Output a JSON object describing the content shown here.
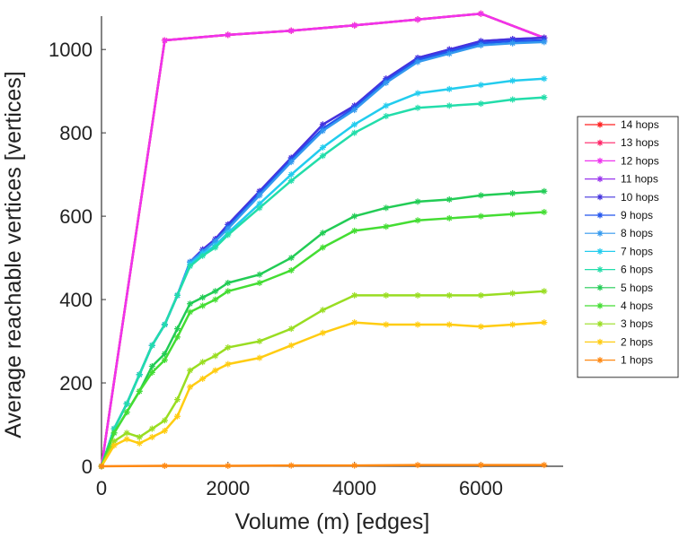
{
  "chart_data": {
    "type": "line",
    "xlabel": "Volume (m) [edges]",
    "ylabel": "Average reachable vertices [vertices]",
    "xlim": [
      0,
      7300
    ],
    "ylim": [
      0,
      1080
    ],
    "x_ticks": [
      0,
      2000,
      4000,
      6000
    ],
    "y_ticks": [
      0,
      200,
      400,
      600,
      800,
      1000
    ],
    "grid": false,
    "legend_position": "right",
    "series": [
      {
        "name": "14 hops",
        "color": "#ff2020",
        "x": [
          0,
          1000,
          2000,
          3000,
          4000,
          5000,
          6000,
          7000
        ],
        "values": [
          0,
          1022,
          1035,
          1045,
          1058,
          1072,
          1086,
          1028
        ]
      },
      {
        "name": "13 hops",
        "color": "#ff2266",
        "x": [
          0,
          1000,
          2000,
          3000,
          4000,
          5000,
          6000,
          7000
        ],
        "values": [
          0,
          1022,
          1035,
          1045,
          1058,
          1072,
          1086,
          1028
        ]
      },
      {
        "name": "12 hops",
        "color": "#ee33ee",
        "x": [
          0,
          1000,
          2000,
          3000,
          4000,
          5000,
          6000,
          7000
        ],
        "values": [
          0,
          1022,
          1035,
          1045,
          1058,
          1072,
          1086,
          1028
        ]
      },
      {
        "name": "11 hops",
        "color": "#9933ee",
        "x": [
          0,
          200,
          400,
          600,
          800,
          1000,
          1200,
          1400,
          1600,
          1800,
          2000,
          2500,
          3000,
          3500,
          4000,
          4500,
          5000,
          5500,
          6000,
          6500,
          7000
        ],
        "values": [
          0,
          90,
          150,
          220,
          290,
          340,
          410,
          490,
          520,
          545,
          580,
          660,
          740,
          820,
          865,
          930,
          980,
          1000,
          1020,
          1025,
          1028
        ]
      },
      {
        "name": "10 hops",
        "color": "#4433dd",
        "x": [
          0,
          200,
          400,
          600,
          800,
          1000,
          1200,
          1400,
          1600,
          1800,
          2000,
          2500,
          3000,
          3500,
          4000,
          4500,
          5000,
          5500,
          6000,
          6500,
          7000
        ],
        "values": [
          0,
          90,
          150,
          220,
          290,
          340,
          410,
          490,
          520,
          545,
          580,
          660,
          740,
          820,
          865,
          930,
          980,
          1000,
          1020,
          1025,
          1028
        ]
      },
      {
        "name": "9 hops",
        "color": "#2255ee",
        "x": [
          0,
          200,
          400,
          600,
          800,
          1000,
          1200,
          1400,
          1600,
          1800,
          2000,
          2500,
          3000,
          3500,
          4000,
          4500,
          5000,
          5500,
          6000,
          6500,
          7000
        ],
        "values": [
          0,
          90,
          150,
          220,
          290,
          340,
          410,
          490,
          515,
          540,
          575,
          655,
          735,
          810,
          860,
          925,
          975,
          995,
          1015,
          1020,
          1022
        ]
      },
      {
        "name": "8 hops",
        "color": "#3399ee",
        "x": [
          0,
          200,
          400,
          600,
          800,
          1000,
          1200,
          1400,
          1600,
          1800,
          2000,
          2500,
          3000,
          3500,
          4000,
          4500,
          5000,
          5500,
          6000,
          6500,
          7000
        ],
        "values": [
          0,
          90,
          150,
          220,
          290,
          340,
          410,
          490,
          515,
          540,
          570,
          650,
          730,
          805,
          855,
          920,
          970,
          990,
          1010,
          1015,
          1018
        ]
      },
      {
        "name": "7 hops",
        "color": "#22ccee",
        "x": [
          0,
          200,
          400,
          600,
          800,
          1000,
          1200,
          1400,
          1600,
          1800,
          2000,
          2500,
          3000,
          3500,
          4000,
          4500,
          5000,
          5500,
          6000,
          6500,
          7000
        ],
        "values": [
          0,
          90,
          150,
          220,
          290,
          340,
          410,
          485,
          510,
          530,
          560,
          630,
          700,
          765,
          820,
          865,
          895,
          905,
          915,
          925,
          930
        ]
      },
      {
        "name": "6 hops",
        "color": "#22ddaa",
        "x": [
          0,
          200,
          400,
          600,
          800,
          1000,
          1200,
          1400,
          1600,
          1800,
          2000,
          2500,
          3000,
          3500,
          4000,
          4500,
          5000,
          5500,
          6000,
          6500,
          7000
        ],
        "values": [
          0,
          90,
          150,
          220,
          290,
          340,
          410,
          480,
          505,
          525,
          555,
          620,
          685,
          745,
          800,
          840,
          860,
          865,
          870,
          880,
          885
        ]
      },
      {
        "name": "5 hops",
        "color": "#22cc55",
        "x": [
          0,
          200,
          400,
          600,
          800,
          1000,
          1200,
          1400,
          1600,
          1800,
          2000,
          2500,
          3000,
          3500,
          4000,
          4500,
          5000,
          5500,
          6000,
          6500,
          7000
        ],
        "values": [
          0,
          80,
          130,
          180,
          240,
          270,
          330,
          390,
          405,
          420,
          440,
          460,
          500,
          560,
          600,
          620,
          635,
          640,
          650,
          655,
          660
        ]
      },
      {
        "name": "4 hops",
        "color": "#44dd33",
        "x": [
          0,
          200,
          400,
          600,
          800,
          1000,
          1200,
          1400,
          1600,
          1800,
          2000,
          2500,
          3000,
          3500,
          4000,
          4500,
          5000,
          5500,
          6000,
          6500,
          7000
        ],
        "values": [
          0,
          80,
          130,
          180,
          225,
          255,
          310,
          370,
          385,
          400,
          420,
          440,
          470,
          525,
          565,
          575,
          590,
          595,
          600,
          605,
          610
        ]
      },
      {
        "name": "3 hops",
        "color": "#99dd22",
        "x": [
          0,
          200,
          400,
          600,
          800,
          1000,
          1200,
          1400,
          1600,
          1800,
          2000,
          2500,
          3000,
          3500,
          4000,
          4500,
          5000,
          5500,
          6000,
          6500,
          7000
        ],
        "values": [
          0,
          60,
          80,
          70,
          90,
          110,
          160,
          230,
          250,
          265,
          285,
          300,
          330,
          375,
          410,
          410,
          410,
          410,
          410,
          415,
          420
        ]
      },
      {
        "name": "2 hops",
        "color": "#ffcc11",
        "x": [
          0,
          200,
          400,
          600,
          800,
          1000,
          1200,
          1400,
          1600,
          1800,
          2000,
          2500,
          3000,
          3500,
          4000,
          4500,
          5000,
          5500,
          6000,
          6500,
          7000
        ],
        "values": [
          0,
          50,
          65,
          55,
          70,
          85,
          120,
          190,
          210,
          230,
          245,
          260,
          290,
          320,
          345,
          340,
          340,
          340,
          335,
          340,
          345
        ]
      },
      {
        "name": "1 hops",
        "color": "#ff8811",
        "x": [
          0,
          1000,
          2000,
          3000,
          4000,
          5000,
          6000,
          7000
        ],
        "values": [
          0,
          1,
          1,
          2,
          2,
          3,
          3,
          3
        ]
      }
    ]
  }
}
